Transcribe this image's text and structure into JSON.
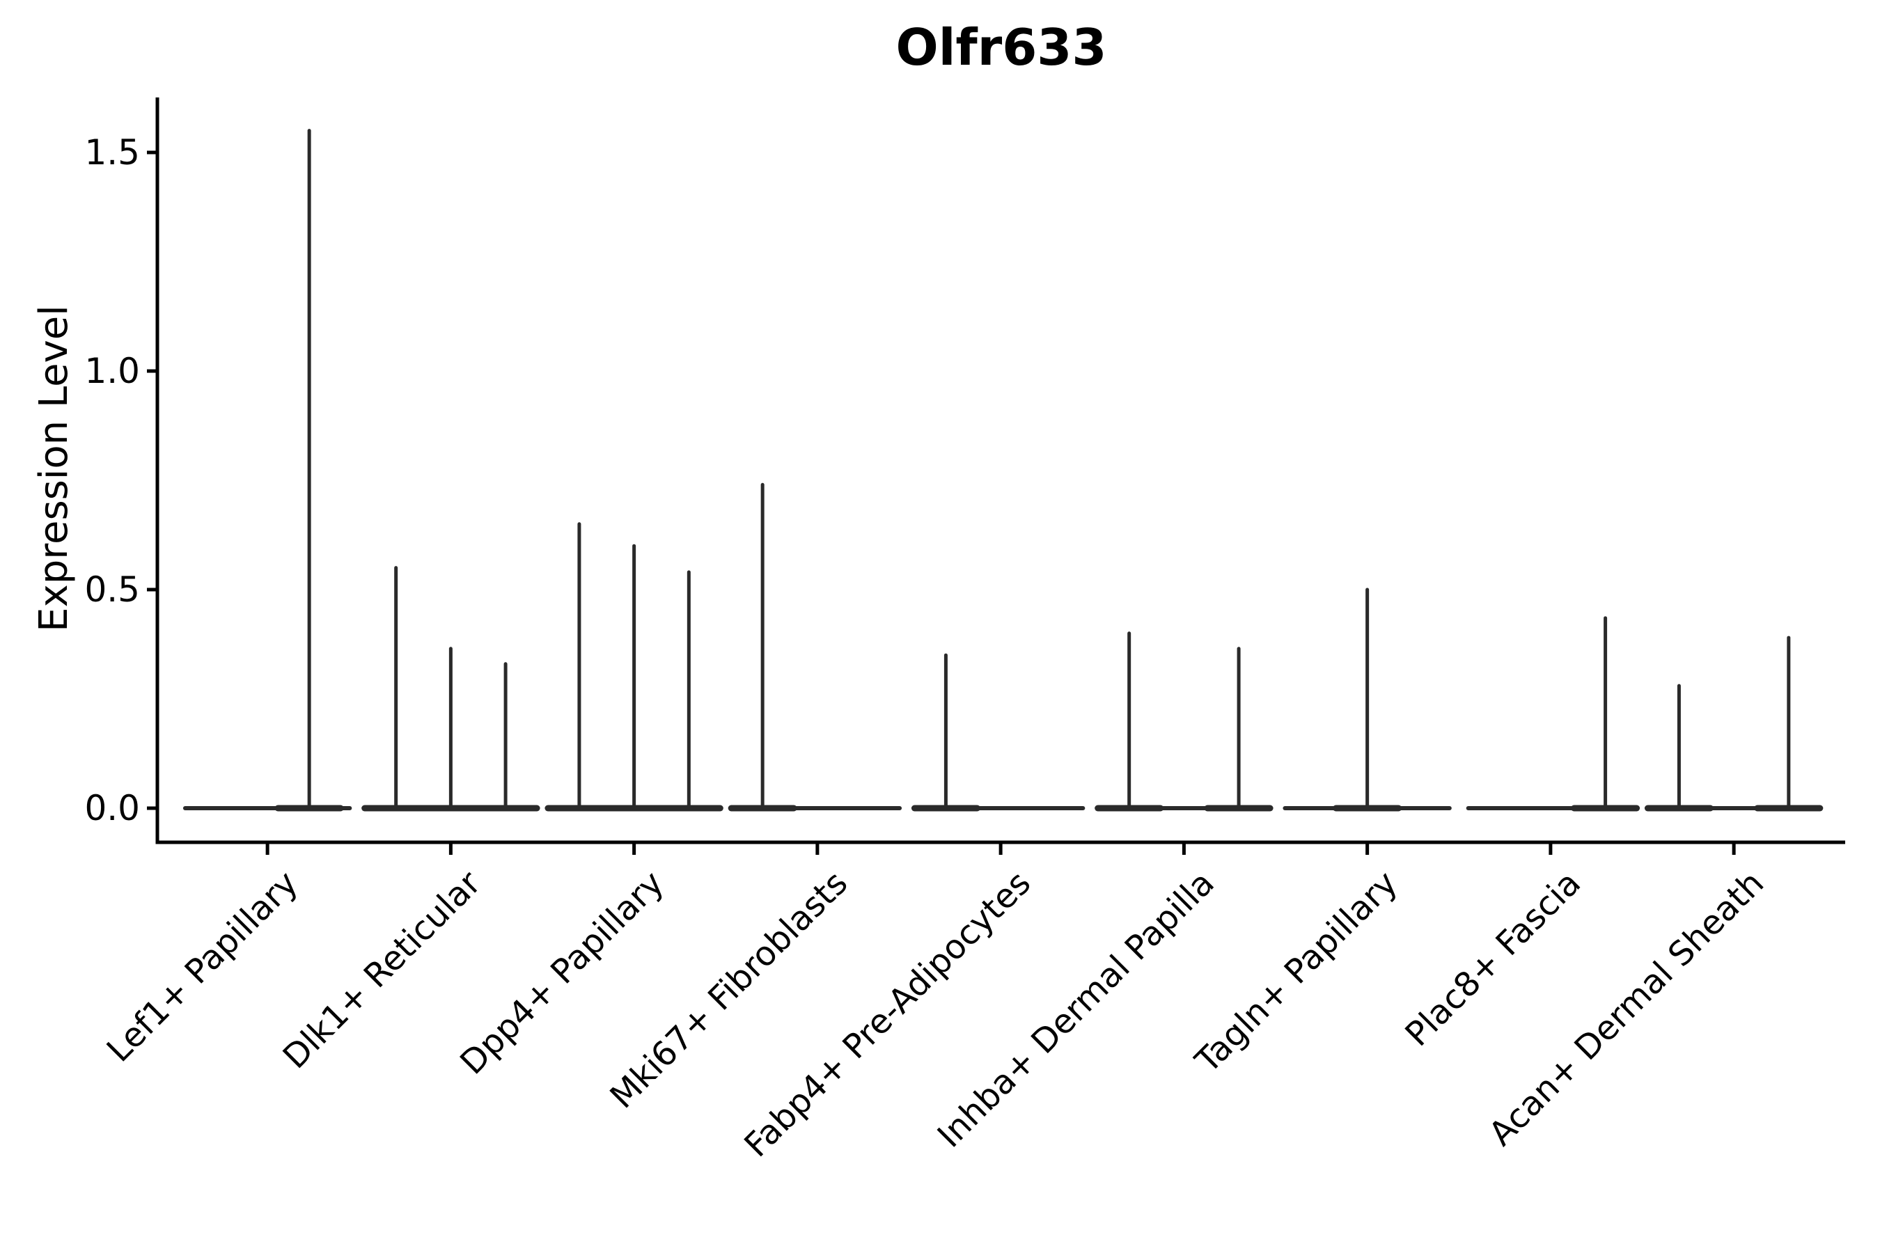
{
  "chart_data": {
    "type": "violin",
    "title": "Olfr633",
    "ylabel": "Expression Level",
    "xlabel": "",
    "grid": false,
    "legend": "none",
    "background_color": "#ffffff",
    "axis_color": "#000000",
    "violin_color": "#2a2a2a",
    "ylim": [
      -0.08,
      1.625
    ],
    "yticks": [
      0.0,
      0.5,
      1.0,
      1.5
    ],
    "ytick_labels": [
      "0.0",
      "0.5",
      "1.0",
      "1.5"
    ],
    "xtick_label_rotation_deg": 45,
    "baseline_value": 0.0,
    "baseline_half_width_frac": 0.449,
    "categories": [
      "Lef1+ Papillary",
      "Dlk1+ Reticular",
      "Dpp4+ Papillary",
      "Mki67+ Fibroblasts",
      "Fabp4+ Pre-Adipocytes",
      "Inhba+ Dermal Papilla",
      "Tagln+ Papillary",
      "Plac8+ Fascia",
      "Acan+ Dermal Sheath"
    ],
    "groups": [
      {
        "label": "Lef1+ Papillary",
        "spikes": [
          {
            "offset": 0.228,
            "value": 1.55
          }
        ]
      },
      {
        "label": "Dlk1+ Reticular",
        "spikes": [
          {
            "offset": -0.299,
            "value": 0.55
          },
          {
            "offset": 0.0,
            "value": 0.365
          },
          {
            "offset": 0.299,
            "value": 0.33
          }
        ]
      },
      {
        "label": "Dpp4+ Papillary",
        "spikes": [
          {
            "offset": -0.299,
            "value": 0.65
          },
          {
            "offset": 0.0,
            "value": 0.6
          },
          {
            "offset": 0.299,
            "value": 0.54
          }
        ]
      },
      {
        "label": "Mki67+ Fibroblasts",
        "spikes": [
          {
            "offset": -0.299,
            "value": 0.74
          }
        ]
      },
      {
        "label": "Fabp4+ Pre-Adipocytes",
        "spikes": [
          {
            "offset": -0.299,
            "value": 0.35
          }
        ]
      },
      {
        "label": "Inhba+ Dermal Papilla",
        "spikes": [
          {
            "offset": -0.299,
            "value": 0.4
          },
          {
            "offset": 0.299,
            "value": 0.365
          }
        ]
      },
      {
        "label": "Tagln+ Papillary",
        "spikes": [
          {
            "offset": 0.0,
            "value": 0.5
          }
        ]
      },
      {
        "label": "Plac8+ Fascia",
        "spikes": [
          {
            "offset": 0.299,
            "value": 0.435
          }
        ]
      },
      {
        "label": "Acan+ Dermal Sheath",
        "spikes": [
          {
            "offset": -0.299,
            "value": 0.28
          },
          {
            "offset": 0.299,
            "value": 0.39
          }
        ]
      }
    ]
  }
}
